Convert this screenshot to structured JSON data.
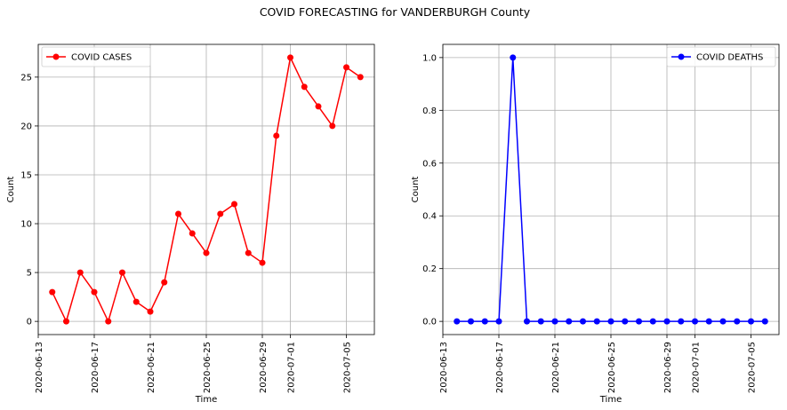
{
  "figure": {
    "suptitle": "COVID FORECASTING for VANDERBURGH County"
  },
  "chart_data": [
    {
      "type": "line",
      "xlabel": "Time",
      "ylabel": "Count",
      "grid": true,
      "legend_position": "upper-left",
      "x": [
        "2020-06-14",
        "2020-06-15",
        "2020-06-16",
        "2020-06-17",
        "2020-06-18",
        "2020-06-19",
        "2020-06-20",
        "2020-06-21",
        "2020-06-22",
        "2020-06-23",
        "2020-06-24",
        "2020-06-25",
        "2020-06-26",
        "2020-06-27",
        "2020-06-28",
        "2020-06-29",
        "2020-06-30",
        "2020-07-01",
        "2020-07-02",
        "2020-07-03",
        "2020-07-04",
        "2020-07-05",
        "2020-07-06"
      ],
      "xlim": [
        "2020-06-13",
        "2020-07-07"
      ],
      "xticks": [
        "2020-06-13",
        "2020-06-17",
        "2020-06-21",
        "2020-06-25",
        "2020-06-29",
        "2020-07-01",
        "2020-07-05"
      ],
      "ylim": [
        -1.35,
        28.35
      ],
      "yticks": [
        "0",
        "5",
        "10",
        "15",
        "20",
        "25"
      ],
      "series": [
        {
          "name": "COVID CASES",
          "color": "#ff0000",
          "values": [
            3,
            0,
            5,
            3,
            0,
            5,
            2,
            1,
            4,
            11,
            9,
            7,
            11,
            12,
            7,
            6,
            19,
            27,
            24,
            22,
            20,
            26,
            25
          ]
        }
      ]
    },
    {
      "type": "line",
      "xlabel": "Time",
      "ylabel": "Count",
      "grid": true,
      "legend_position": "upper-right",
      "x": [
        "2020-06-14",
        "2020-06-15",
        "2020-06-16",
        "2020-06-17",
        "2020-06-18",
        "2020-06-19",
        "2020-06-20",
        "2020-06-21",
        "2020-06-22",
        "2020-06-23",
        "2020-06-24",
        "2020-06-25",
        "2020-06-26",
        "2020-06-27",
        "2020-06-28",
        "2020-06-29",
        "2020-06-30",
        "2020-07-01",
        "2020-07-02",
        "2020-07-03",
        "2020-07-04",
        "2020-07-05",
        "2020-07-06"
      ],
      "xlim": [
        "2020-06-13",
        "2020-07-07"
      ],
      "xticks": [
        "2020-06-13",
        "2020-06-17",
        "2020-06-21",
        "2020-06-25",
        "2020-06-29",
        "2020-07-01",
        "2020-07-05"
      ],
      "ylim": [
        -0.05,
        1.05
      ],
      "yticks": [
        "0.0",
        "0.2",
        "0.4",
        "0.6",
        "0.8",
        "1.0"
      ],
      "series": [
        {
          "name": "COVID DEATHS",
          "color": "#0000ff",
          "values": [
            0,
            0,
            0,
            0,
            1,
            0,
            0,
            0,
            0,
            0,
            0,
            0,
            0,
            0,
            0,
            0,
            0,
            0,
            0,
            0,
            0,
            0,
            0
          ]
        }
      ]
    }
  ]
}
